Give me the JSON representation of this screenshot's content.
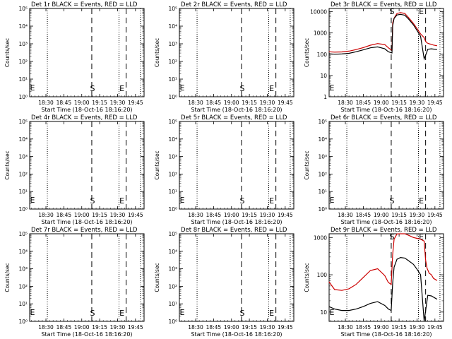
{
  "chart_data": [
    {
      "type": "line",
      "title": "Det 1r BLACK = Events, RED = LLD",
      "xlabel": "Start Time (18-Oct-16 18:16:20)",
      "ylabel": "Counts/sec",
      "yscale": "log",
      "x_ticks": [
        "18:30",
        "18:45",
        "19:00",
        "19:15",
        "19:30",
        "19:45"
      ],
      "y_ticks": [
        "10^0",
        "10^1",
        "10^2",
        "10^3",
        "10^4",
        "10^5"
      ],
      "markers": [
        "S",
        "E"
      ],
      "series": []
    },
    {
      "type": "line",
      "title": "Det 2r BLACK = Events, RED = LLD",
      "xlabel": "Start Time (18-Oct-16 18:16:20)",
      "ylabel": "Counts/sec",
      "yscale": "log",
      "x_ticks": [
        "18:30",
        "18:45",
        "19:00",
        "19:15",
        "19:30",
        "19:45"
      ],
      "y_ticks": [
        "10^0",
        "10^1",
        "10^2",
        "10^3",
        "10^4",
        "10^5"
      ],
      "markers": [
        "S",
        "E"
      ],
      "series": []
    },
    {
      "type": "line",
      "title": "Det 3r BLACK = Events, RED = LLD",
      "xlabel": "Start Time (18-Oct-16 18:16:20)",
      "ylabel": "Counts/sec",
      "yscale": "log",
      "x_ticks": [
        "18:30",
        "18:45",
        "19:00",
        "19:15",
        "19:30",
        "19:45"
      ],
      "y_ticks": [
        "1",
        "10",
        "100",
        "1000",
        "10000"
      ],
      "markers": [
        "S",
        "E"
      ],
      "series": [
        {
          "color": "#cc0000",
          "x": [
            18.27,
            18.35,
            18.45,
            18.55,
            18.65,
            18.75,
            18.85,
            18.95,
            19.05,
            19.1,
            19.15,
            19.16,
            19.18,
            19.22,
            19.27,
            19.33,
            19.38,
            19.45,
            19.5,
            19.55,
            19.6,
            19.62,
            19.64,
            19.67,
            19.7,
            19.73,
            19.78
          ],
          "y": [
            130,
            125,
            128,
            140,
            165,
            205,
            265,
            315,
            285,
            200,
            150,
            3000,
            5000,
            8200,
            9000,
            8200,
            5400,
            2800,
            1600,
            900,
            600,
            400,
            340,
            310,
            290,
            270,
            250
          ]
        },
        {
          "color": "#000000",
          "x": [
            18.27,
            18.35,
            18.45,
            18.55,
            18.65,
            18.75,
            18.85,
            18.95,
            19.05,
            19.1,
            19.15,
            19.16,
            19.18,
            19.22,
            19.27,
            19.33,
            19.38,
            19.45,
            19.5,
            19.55,
            19.6,
            19.63,
            19.65,
            19.7,
            19.78
          ],
          "y": [
            105,
            100,
            103,
            110,
            130,
            160,
            200,
            220,
            180,
            130,
            115,
            2200,
            4800,
            7000,
            7500,
            6800,
            4600,
            2400,
            1300,
            700,
            60,
            110,
            170,
            180,
            165
          ]
        }
      ]
    },
    {
      "type": "line",
      "title": "Det 4r BLACK = Events, RED = LLD",
      "xlabel": "Start Time (18-Oct-16 18:16:20)",
      "ylabel": "Counts/sec",
      "yscale": "log",
      "x_ticks": [
        "18:30",
        "18:45",
        "19:00",
        "19:15",
        "19:30",
        "19:45"
      ],
      "y_ticks": [
        "10^0",
        "10^1",
        "10^2",
        "10^3",
        "10^4",
        "10^5"
      ],
      "markers": [
        "S",
        "E"
      ],
      "series": []
    },
    {
      "type": "line",
      "title": "Det 5r BLACK = Events, RED = LLD",
      "xlabel": "Start Time (18-Oct-16 18:16:20)",
      "ylabel": "Counts/sec",
      "yscale": "log",
      "x_ticks": [
        "18:30",
        "18:45",
        "19:00",
        "19:15",
        "19:30",
        "19:45"
      ],
      "y_ticks": [
        "10^0",
        "10^1",
        "10^2",
        "10^3",
        "10^4",
        "10^5"
      ],
      "markers": [
        "S",
        "E"
      ],
      "series": []
    },
    {
      "type": "line",
      "title": "Det 6r BLACK = Events, RED = LLD",
      "xlabel": "Start Time (18-Oct-16 18:16:20)",
      "ylabel": "Counts/sec",
      "yscale": "log",
      "x_ticks": [
        "18:30",
        "18:45",
        "19:00",
        "19:15",
        "19:30",
        "19:45"
      ],
      "y_ticks": [
        "10^0",
        "10^1",
        "10^2",
        "10^3",
        "10^4",
        "10^5"
      ],
      "markers": [
        "S",
        "E"
      ],
      "series": []
    },
    {
      "type": "line",
      "title": "Det 7r BLACK = Events, RED = LLD",
      "xlabel": "Start Time (18-Oct-16 18:16:20)",
      "ylabel": "Counts/sec",
      "yscale": "log",
      "x_ticks": [
        "18:30",
        "18:45",
        "19:00",
        "19:15",
        "19:30",
        "19:45"
      ],
      "y_ticks": [
        "10^0",
        "10^1",
        "10^2",
        "10^3",
        "10^4",
        "10^5"
      ],
      "markers": [
        "S",
        "E"
      ],
      "series": []
    },
    {
      "type": "line",
      "title": "Det 8r BLACK = Events, RED = LLD",
      "xlabel": "Start Time (18-Oct-16 18:16:20)",
      "ylabel": "Counts/sec",
      "yscale": "log",
      "x_ticks": [
        "18:30",
        "18:45",
        "19:00",
        "19:15",
        "19:30",
        "19:45"
      ],
      "y_ticks": [
        "10^0",
        "10^1",
        "10^2",
        "10^3",
        "10^4",
        "10^5"
      ],
      "markers": [
        "S",
        "E"
      ],
      "series": []
    },
    {
      "type": "line",
      "title": "Det 9r BLACK = Events, RED = LLD",
      "xlabel": "Start Time (18-Oct-16 18:16:20)",
      "ylabel": "Counts/sec",
      "yscale": "log",
      "x_ticks": [
        "18:30",
        "18:45",
        "19:00",
        "19:15",
        "19:30",
        "19:45"
      ],
      "y_ticks": [
        "10",
        "100",
        "1000"
      ],
      "markers": [
        "S",
        "E"
      ],
      "series": [
        {
          "color": "#cc0000",
          "x": [
            18.27,
            18.35,
            18.45,
            18.55,
            18.65,
            18.75,
            18.85,
            18.95,
            19.05,
            19.1,
            19.14,
            19.16,
            19.18,
            19.22,
            19.27,
            19.33,
            19.38,
            19.45,
            19.5,
            19.55,
            19.6,
            19.62,
            19.64,
            19.67,
            19.7,
            19.73,
            19.78
          ],
          "y": [
            65,
            40,
            38,
            42,
            55,
            85,
            130,
            145,
            95,
            62,
            55,
            350,
            900,
            1250,
            1400,
            1350,
            1150,
            1000,
            950,
            900,
            800,
            250,
            150,
            110,
            100,
            80,
            70
          ]
        },
        {
          "color": "#000000",
          "x": [
            18.27,
            18.35,
            18.45,
            18.55,
            18.65,
            18.75,
            18.85,
            18.95,
            19.05,
            19.1,
            19.14,
            19.16,
            19.18,
            19.22,
            19.27,
            19.33,
            19.38,
            19.45,
            19.5,
            19.55,
            19.6,
            19.63,
            19.65,
            19.7,
            19.78
          ],
          "y": [
            14,
            12,
            11,
            11,
            12,
            14,
            17,
            19,
            15,
            12,
            11,
            60,
            160,
            260,
            290,
            280,
            240,
            190,
            140,
            100,
            3,
            15,
            28,
            27,
            22
          ]
        }
      ]
    }
  ],
  "panel_style": {
    "tmin": 18.273,
    "tmax": 19.87,
    "x_ticks_h": [
      18.5,
      18.75,
      19.0,
      19.25,
      19.5,
      19.75
    ],
    "dotted_lines_h": [
      18.52,
      19.52,
      19.82
    ],
    "dashed_lines_h": [
      19.14,
      19.62
    ],
    "ylog_empty": [
      0,
      5
    ],
    "ylog_3": [
      0,
      4.15
    ],
    "ylog_9": [
      0.75,
      3.1
    ]
  }
}
